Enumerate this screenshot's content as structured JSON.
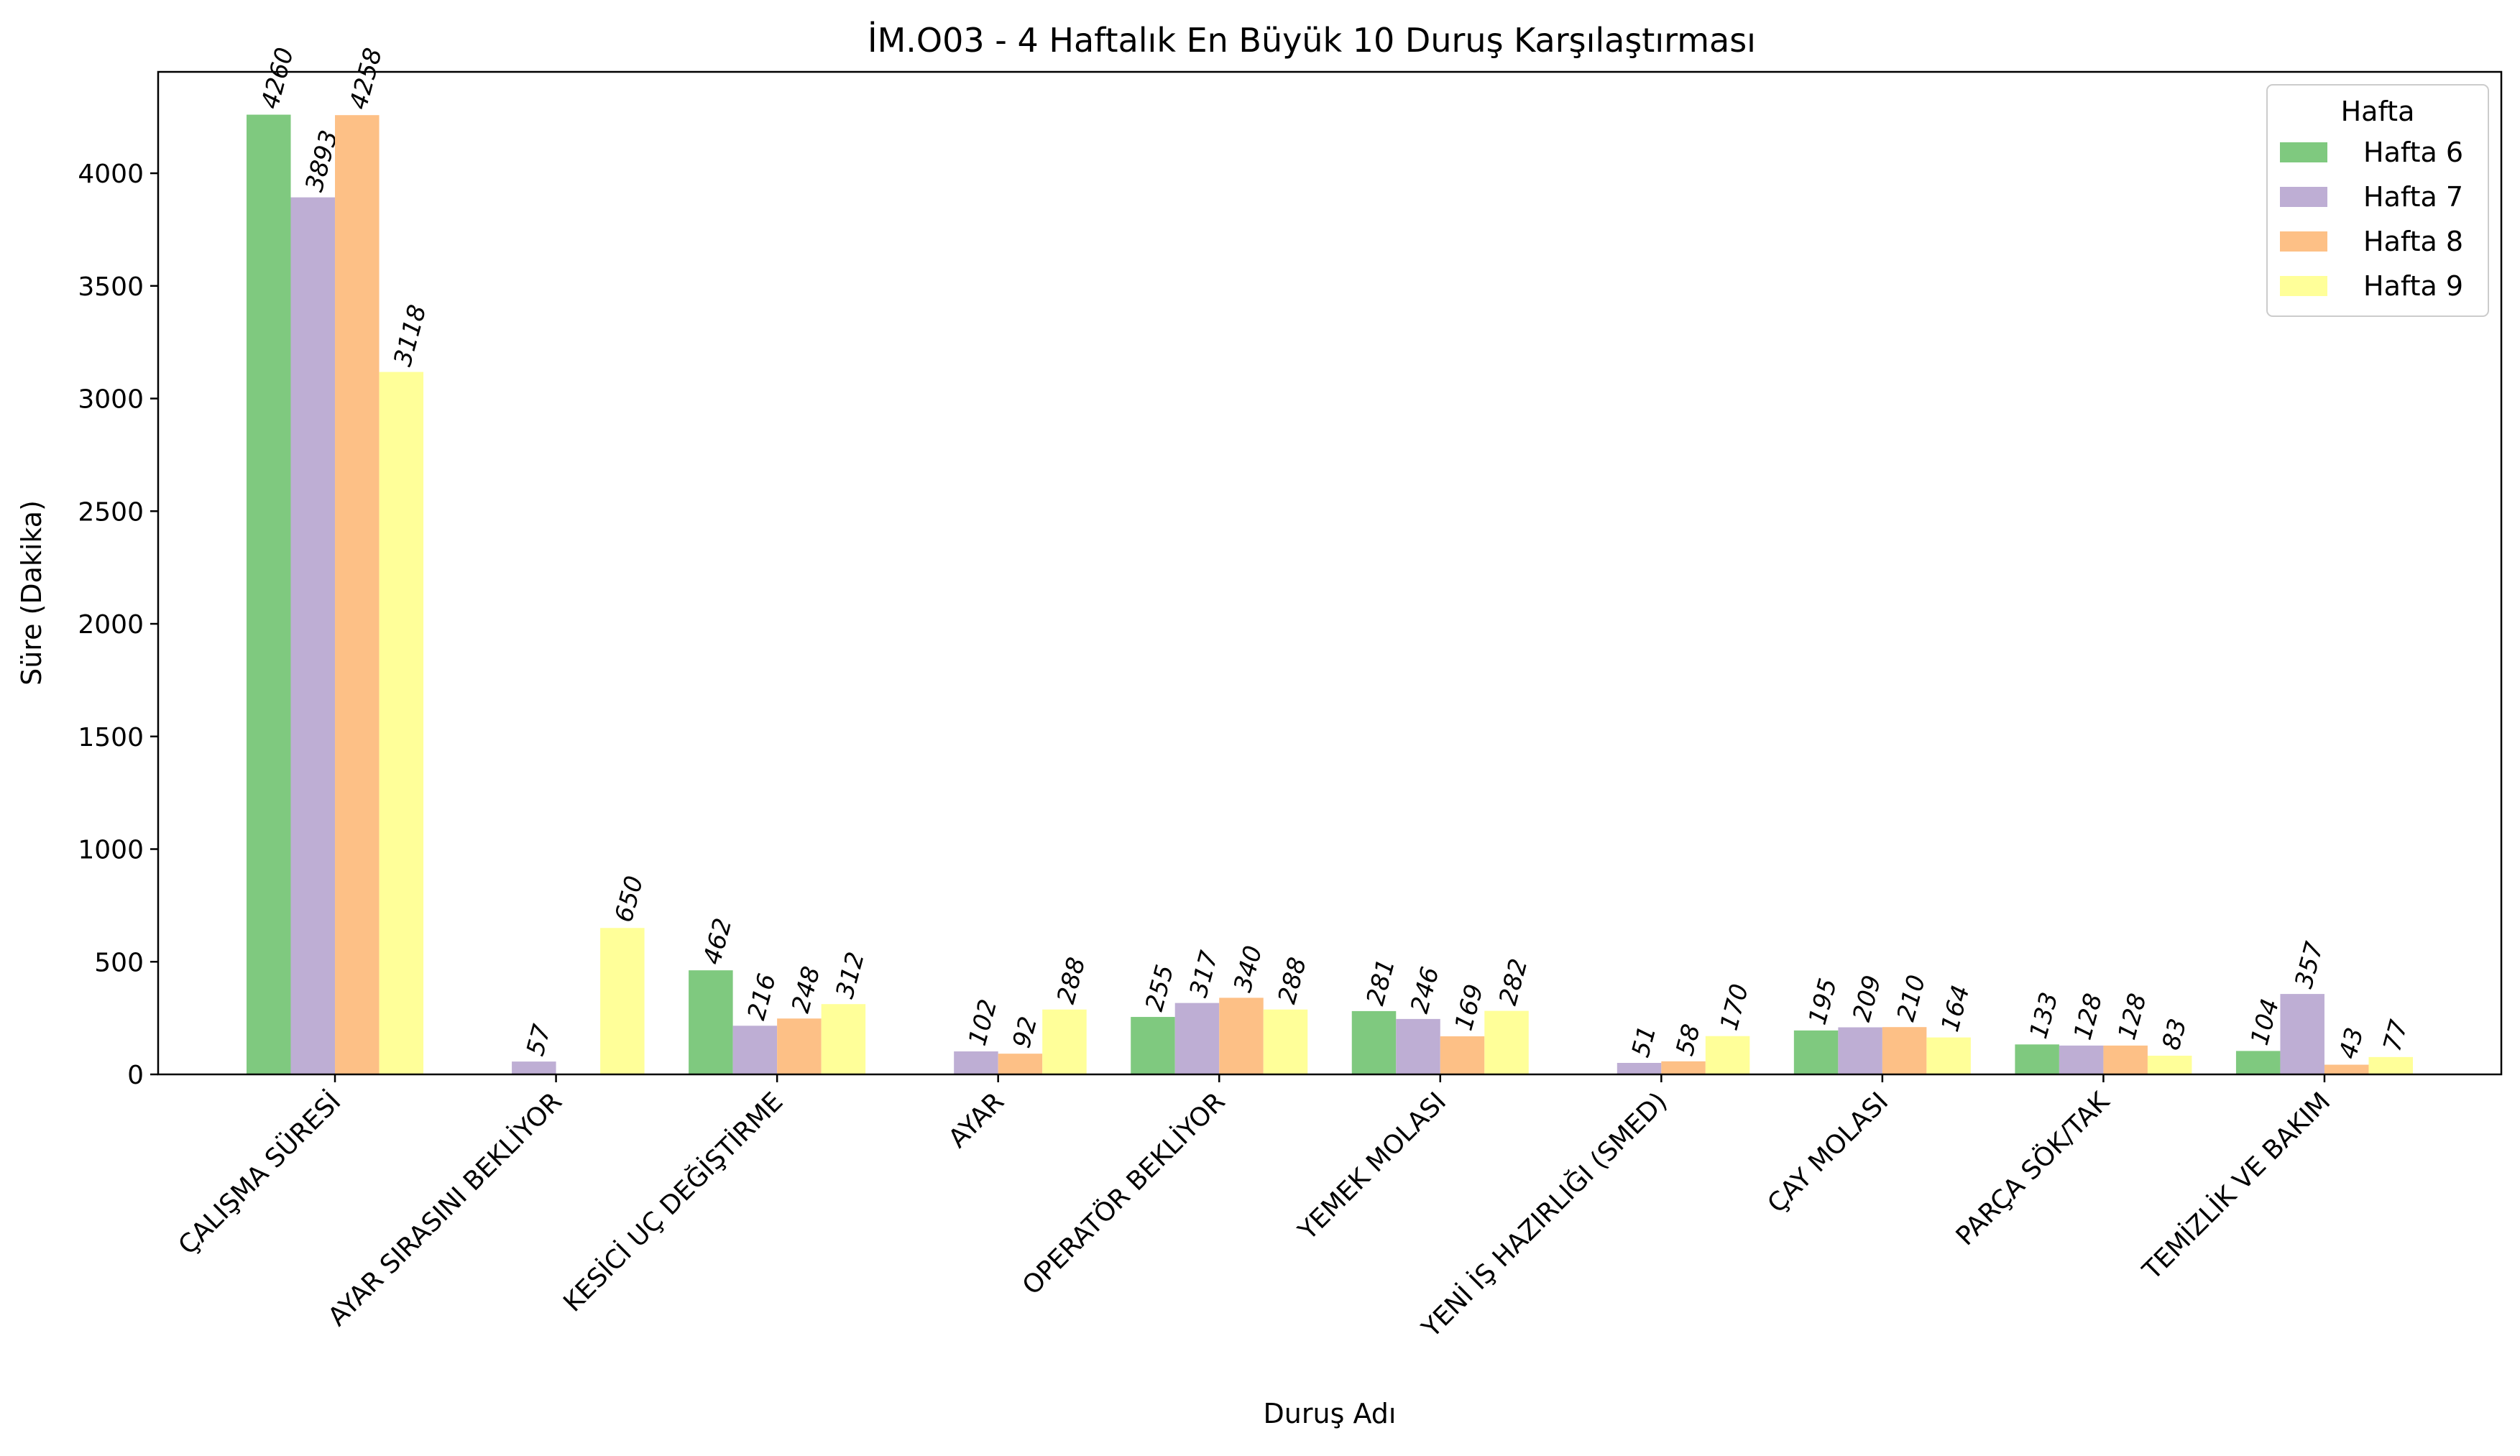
{
  "chart_data": {
    "type": "bar",
    "title": "İM.O03 - 4 Haftalık En Büyük 10 Duruş Karşılaştırması",
    "xlabel": "Duruş Adı",
    "ylabel": "Süre (Dakika)",
    "ylim": [
      0,
      4450
    ],
    "yticks": [
      0,
      500,
      1000,
      1500,
      2000,
      2500,
      3000,
      3500,
      4000
    ],
    "grid": false,
    "legend": {
      "title": "Hafta",
      "placement": "top-right"
    },
    "categories": [
      "ÇALIŞMA SÜRESİ",
      "AYAR SIRASINI BEKLİYOR",
      "KESİCİ UÇ DEĞİŞTİRME",
      "AYAR",
      "OPERATÖR BEKLİYOR",
      "YEMEK MOLASI",
      "YENİ İŞ HAZIRLIĞI (SMED)",
      "ÇAY MOLASI",
      "PARÇA SÖK/TAK",
      "TEMİZLİK VE BAKIM"
    ],
    "series": [
      {
        "name": "Hafta 6",
        "color": "#7fc97f",
        "values": [
          4260,
          null,
          462,
          null,
          255,
          281,
          null,
          195,
          133,
          104
        ]
      },
      {
        "name": "Hafta 7",
        "color": "#beaed4",
        "values": [
          3893,
          57,
          216,
          102,
          317,
          246,
          51,
          209,
          128,
          357
        ]
      },
      {
        "name": "Hafta 8",
        "color": "#fdc086",
        "values": [
          4258,
          null,
          248,
          92,
          340,
          169,
          58,
          210,
          128,
          43
        ]
      },
      {
        "name": "Hafta 9",
        "color": "#ffff99",
        "values": [
          3118,
          650,
          312,
          288,
          288,
          282,
          170,
          164,
          83,
          77
        ]
      }
    ]
  }
}
